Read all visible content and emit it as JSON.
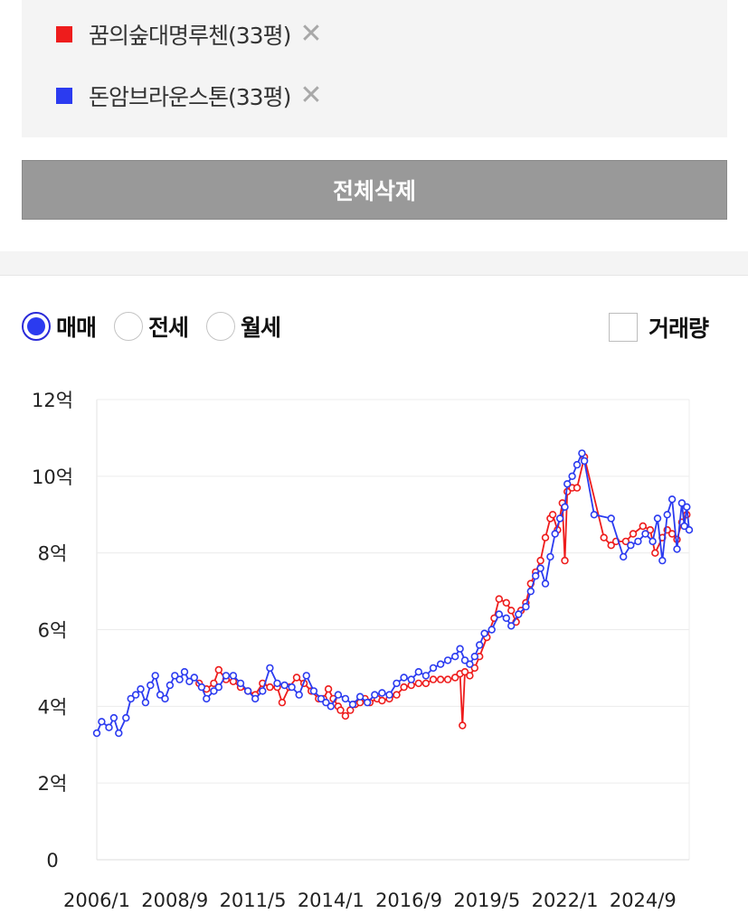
{
  "compare_list": {
    "items": [
      {
        "label": "꿈의숲대명루첸(33평)",
        "color": "#ee1c1c",
        "remove": "✕"
      },
      {
        "label": "돈암브라운스톤(33평)",
        "color": "#2b3bf0",
        "remove": "✕"
      }
    ],
    "delete_all_label": "전체삭제"
  },
  "tabs": [
    {
      "label": "매매",
      "selected": true
    },
    {
      "label": "전세",
      "selected": false
    },
    {
      "label": "월세",
      "selected": false
    }
  ],
  "volume_toggle": {
    "label": "거래량",
    "checked": false
  },
  "chart_data": {
    "type": "line",
    "title": "",
    "xlabel": "",
    "ylabel": "",
    "y_unit": "억",
    "ylim": [
      0,
      12
    ],
    "y_ticks": [
      {
        "value": 0,
        "label": "0"
      },
      {
        "value": 2,
        "label": "2억"
      },
      {
        "value": 4,
        "label": "4억"
      },
      {
        "value": 6,
        "label": "6억"
      },
      {
        "value": 8,
        "label": "8억"
      },
      {
        "value": 10,
        "label": "10억"
      },
      {
        "value": 12,
        "label": "12억"
      }
    ],
    "xlim": [
      "2006-01",
      "2026-04"
    ],
    "x_ticks": [
      "2006/1",
      "2008/9",
      "2011/5",
      "2014/1",
      "2016/9",
      "2019/5",
      "2022/1",
      "2024/9"
    ],
    "grid": true,
    "series": [
      {
        "name": "꿈의숲대명루첸(33평)",
        "color": "#ee1c1c",
        "points": [
          [
            "2009-07",
            4.6
          ],
          [
            "2009-10",
            4.45
          ],
          [
            "2010-01",
            4.6
          ],
          [
            "2010-03",
            4.95
          ],
          [
            "2010-06",
            4.7
          ],
          [
            "2010-09",
            4.65
          ],
          [
            "2010-12",
            4.5
          ],
          [
            "2011-03",
            4.4
          ],
          [
            "2011-06",
            4.3
          ],
          [
            "2011-09",
            4.6
          ],
          [
            "2011-12",
            4.5
          ],
          [
            "2012-03",
            4.5
          ],
          [
            "2012-05",
            4.1
          ],
          [
            "2012-08",
            4.5
          ],
          [
            "2012-11",
            4.75
          ],
          [
            "2013-02",
            4.6
          ],
          [
            "2013-05",
            4.4
          ],
          [
            "2013-08",
            4.2
          ],
          [
            "2013-10",
            4.2
          ],
          [
            "2013-12",
            4.45
          ],
          [
            "2014-02",
            4.2
          ],
          [
            "2014-04",
            4.0
          ],
          [
            "2014-05",
            3.9
          ],
          [
            "2014-07",
            3.75
          ],
          [
            "2014-09",
            3.9
          ],
          [
            "2014-11",
            4.05
          ],
          [
            "2015-01",
            4.1
          ],
          [
            "2015-03",
            4.2
          ],
          [
            "2015-05",
            4.1
          ],
          [
            "2015-08",
            4.2
          ],
          [
            "2015-10",
            4.15
          ],
          [
            "2016-01",
            4.2
          ],
          [
            "2016-04",
            4.3
          ],
          [
            "2016-07",
            4.5
          ],
          [
            "2016-10",
            4.55
          ],
          [
            "2017-01",
            4.6
          ],
          [
            "2017-04",
            4.6
          ],
          [
            "2017-07",
            4.7
          ],
          [
            "2017-10",
            4.7
          ],
          [
            "2018-01",
            4.7
          ],
          [
            "2018-04",
            4.75
          ],
          [
            "2018-06",
            4.85
          ],
          [
            "2018-07",
            3.5
          ],
          [
            "2018-08",
            4.9
          ],
          [
            "2018-10",
            4.8
          ],
          [
            "2018-12",
            5.0
          ],
          [
            "2019-02",
            5.3
          ],
          [
            "2019-05",
            5.8
          ],
          [
            "2019-08",
            6.3
          ],
          [
            "2019-10",
            6.8
          ],
          [
            "2020-01",
            6.7
          ],
          [
            "2020-03",
            6.5
          ],
          [
            "2020-05",
            6.2
          ],
          [
            "2020-07",
            6.5
          ],
          [
            "2020-09",
            6.7
          ],
          [
            "2020-11",
            7.2
          ],
          [
            "2021-01",
            7.5
          ],
          [
            "2021-03",
            7.8
          ],
          [
            "2021-05",
            8.4
          ],
          [
            "2021-07",
            8.9
          ],
          [
            "2021-08",
            9.0
          ],
          [
            "2021-10",
            8.6
          ],
          [
            "2021-12",
            9.3
          ],
          [
            "2022-01",
            7.8
          ],
          [
            "2022-02",
            9.6
          ],
          [
            "2022-04",
            9.7
          ],
          [
            "2022-06",
            9.7
          ],
          [
            "2022-09",
            10.5
          ],
          [
            "2023-05",
            8.4
          ],
          [
            "2023-08",
            8.2
          ],
          [
            "2023-10",
            8.3
          ],
          [
            "2024-02",
            8.3
          ],
          [
            "2024-05",
            8.5
          ],
          [
            "2024-09",
            8.7
          ],
          [
            "2024-12",
            8.6
          ],
          [
            "2025-02",
            8.0
          ],
          [
            "2025-05",
            8.4
          ],
          [
            "2025-07",
            8.6
          ],
          [
            "2025-09",
            8.5
          ],
          [
            "2025-11",
            8.35
          ],
          [
            "2026-01",
            8.8
          ],
          [
            "2026-03",
            9.0
          ]
        ]
      },
      {
        "name": "돈암브라운스톤(33평)",
        "color": "#2b3bf0",
        "points": [
          [
            "2006-01",
            3.3
          ],
          [
            "2006-03",
            3.6
          ],
          [
            "2006-06",
            3.45
          ],
          [
            "2006-08",
            3.7
          ],
          [
            "2006-10",
            3.3
          ],
          [
            "2007-01",
            3.7
          ],
          [
            "2007-03",
            4.2
          ],
          [
            "2007-05",
            4.3
          ],
          [
            "2007-07",
            4.45
          ],
          [
            "2007-09",
            4.1
          ],
          [
            "2007-11",
            4.55
          ],
          [
            "2008-01",
            4.8
          ],
          [
            "2008-03",
            4.3
          ],
          [
            "2008-05",
            4.2
          ],
          [
            "2008-07",
            4.55
          ],
          [
            "2008-09",
            4.8
          ],
          [
            "2008-11",
            4.7
          ],
          [
            "2009-01",
            4.9
          ],
          [
            "2009-03",
            4.65
          ],
          [
            "2009-05",
            4.75
          ],
          [
            "2009-08",
            4.5
          ],
          [
            "2009-10",
            4.2
          ],
          [
            "2010-01",
            4.4
          ],
          [
            "2010-03",
            4.5
          ],
          [
            "2010-06",
            4.8
          ],
          [
            "2010-09",
            4.8
          ],
          [
            "2010-12",
            4.6
          ],
          [
            "2011-03",
            4.4
          ],
          [
            "2011-06",
            4.2
          ],
          [
            "2011-09",
            4.4
          ],
          [
            "2011-12",
            5.0
          ],
          [
            "2012-03",
            4.6
          ],
          [
            "2012-06",
            4.55
          ],
          [
            "2012-09",
            4.5
          ],
          [
            "2012-12",
            4.3
          ],
          [
            "2013-03",
            4.8
          ],
          [
            "2013-06",
            4.4
          ],
          [
            "2013-09",
            4.2
          ],
          [
            "2013-11",
            4.1
          ],
          [
            "2014-01",
            4.0
          ],
          [
            "2014-04",
            4.3
          ],
          [
            "2014-07",
            4.2
          ],
          [
            "2014-10",
            4.05
          ],
          [
            "2015-01",
            4.25
          ],
          [
            "2015-04",
            4.1
          ],
          [
            "2015-07",
            4.3
          ],
          [
            "2015-10",
            4.35
          ],
          [
            "2016-01",
            4.3
          ],
          [
            "2016-04",
            4.6
          ],
          [
            "2016-07",
            4.75
          ],
          [
            "2016-10",
            4.7
          ],
          [
            "2017-01",
            4.9
          ],
          [
            "2017-04",
            4.8
          ],
          [
            "2017-07",
            5.0
          ],
          [
            "2017-10",
            5.1
          ],
          [
            "2018-01",
            5.2
          ],
          [
            "2018-04",
            5.3
          ],
          [
            "2018-06",
            5.5
          ],
          [
            "2018-08",
            5.2
          ],
          [
            "2018-10",
            5.1
          ],
          [
            "2018-12",
            5.3
          ],
          [
            "2019-02",
            5.6
          ],
          [
            "2019-04",
            5.9
          ],
          [
            "2019-07",
            6.0
          ],
          [
            "2019-10",
            6.4
          ],
          [
            "2020-01",
            6.3
          ],
          [
            "2020-03",
            6.1
          ],
          [
            "2020-06",
            6.4
          ],
          [
            "2020-09",
            6.6
          ],
          [
            "2020-11",
            7.0
          ],
          [
            "2021-01",
            7.4
          ],
          [
            "2021-03",
            7.6
          ],
          [
            "2021-05",
            7.2
          ],
          [
            "2021-07",
            7.9
          ],
          [
            "2021-09",
            8.5
          ],
          [
            "2021-11",
            8.9
          ],
          [
            "2022-01",
            9.2
          ],
          [
            "2022-02",
            9.8
          ],
          [
            "2022-04",
            10.0
          ],
          [
            "2022-06",
            10.3
          ],
          [
            "2022-08",
            10.6
          ],
          [
            "2022-09",
            10.4
          ],
          [
            "2023-01",
            9.0
          ],
          [
            "2023-08",
            8.9
          ],
          [
            "2024-01",
            7.9
          ],
          [
            "2024-04",
            8.2
          ],
          [
            "2024-07",
            8.3
          ],
          [
            "2024-10",
            8.5
          ],
          [
            "2025-01",
            8.3
          ],
          [
            "2025-03",
            8.9
          ],
          [
            "2025-05",
            7.8
          ],
          [
            "2025-07",
            9.0
          ],
          [
            "2025-09",
            9.4
          ],
          [
            "2025-11",
            8.1
          ],
          [
            "2026-01",
            9.3
          ],
          [
            "2026-02",
            8.7
          ],
          [
            "2026-03",
            9.2
          ],
          [
            "2026-04",
            8.6
          ]
        ]
      }
    ]
  }
}
